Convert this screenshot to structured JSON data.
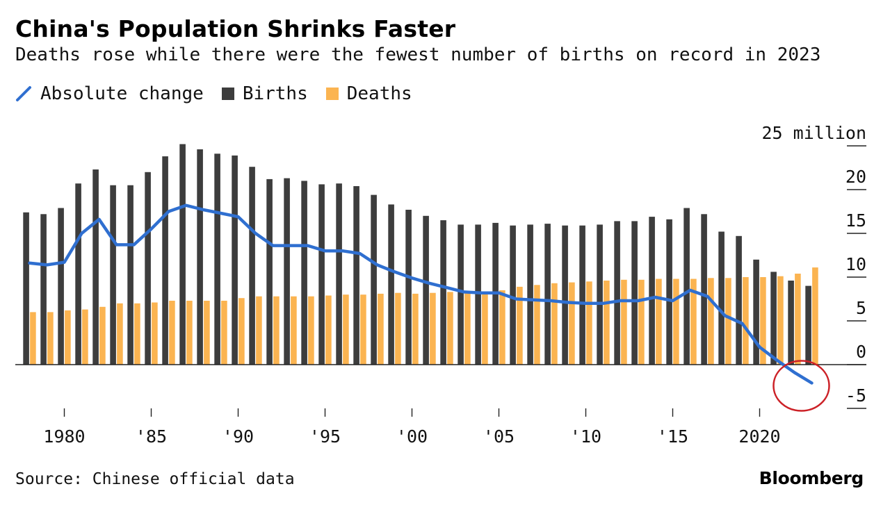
{
  "header": {
    "title": "China's Population Shrinks Faster",
    "subtitle": "Deaths rose while there were the fewest number of births on record in 2023"
  },
  "legend": {
    "line_label": "Absolute change",
    "births_label": "Births",
    "deaths_label": "Deaths"
  },
  "footer": {
    "source": "Source: Chinese official data",
    "brand": "Bloomberg"
  },
  "colors": {
    "births": "#3d3d3d",
    "deaths": "#fbb451",
    "change": "#2f6fd0",
    "highlight": "#cc2127"
  },
  "chart_data": {
    "type": "bar",
    "x": [
      1978,
      1979,
      1980,
      1981,
      1982,
      1983,
      1984,
      1985,
      1986,
      1987,
      1988,
      1989,
      1990,
      1991,
      1992,
      1993,
      1994,
      1995,
      1996,
      1997,
      1998,
      1999,
      2000,
      2001,
      2002,
      2003,
      2004,
      2005,
      2006,
      2007,
      2008,
      2009,
      2010,
      2011,
      2012,
      2013,
      2014,
      2015,
      2016,
      2017,
      2018,
      2019,
      2020,
      2021,
      2022,
      2023
    ],
    "series": [
      {
        "name": "Births",
        "type": "bar",
        "values": [
          17.4,
          17.2,
          17.9,
          20.7,
          22.3,
          20.5,
          20.5,
          22.0,
          23.8,
          25.2,
          24.6,
          24.1,
          23.9,
          22.6,
          21.2,
          21.3,
          21.0,
          20.6,
          20.7,
          20.4,
          19.4,
          18.3,
          17.7,
          17.0,
          16.5,
          16.0,
          16.0,
          16.2,
          15.9,
          16.0,
          16.1,
          15.9,
          15.9,
          16.0,
          16.4,
          16.4,
          16.9,
          16.6,
          17.9,
          17.2,
          15.2,
          14.7,
          12.0,
          10.6,
          9.6,
          9.0
        ]
      },
      {
        "name": "Deaths",
        "type": "bar",
        "values": [
          6.0,
          6.0,
          6.2,
          6.3,
          6.6,
          7.0,
          7.0,
          7.1,
          7.3,
          7.3,
          7.3,
          7.3,
          7.6,
          7.8,
          7.8,
          7.8,
          7.8,
          7.9,
          8.0,
          8.0,
          8.1,
          8.2,
          8.1,
          8.2,
          8.3,
          8.3,
          8.3,
          8.5,
          8.9,
          9.1,
          9.3,
          9.4,
          9.5,
          9.6,
          9.7,
          9.7,
          9.8,
          9.8,
          9.8,
          9.9,
          9.9,
          10.0,
          10.0,
          10.1,
          10.4,
          11.1
        ]
      },
      {
        "name": "Absolute change",
        "type": "line",
        "values": [
          11.6,
          11.4,
          11.7,
          15.0,
          16.6,
          13.7,
          13.7,
          15.5,
          17.5,
          18.2,
          17.7,
          17.3,
          16.9,
          15.0,
          13.6,
          13.6,
          13.6,
          13.0,
          13.0,
          12.7,
          11.4,
          10.6,
          9.9,
          9.3,
          8.8,
          8.3,
          8.2,
          8.2,
          7.5,
          7.4,
          7.3,
          7.1,
          7.0,
          7.0,
          7.3,
          7.3,
          7.7,
          7.3,
          8.5,
          7.8,
          5.6,
          4.7,
          2.0,
          0.5,
          -0.9,
          -2.1
        ]
      }
    ],
    "x_ticks": [
      {
        "x": 1980,
        "label": "1980"
      },
      {
        "x": 1985,
        "label": "'85"
      },
      {
        "x": 1990,
        "label": "'90"
      },
      {
        "x": 1995,
        "label": "'95"
      },
      {
        "x": 2000,
        "label": "'00"
      },
      {
        "x": 2005,
        "label": "'05"
      },
      {
        "x": 2010,
        "label": "'10"
      },
      {
        "x": 2015,
        "label": "'15"
      },
      {
        "x": 2020,
        "label": "2020"
      }
    ],
    "y_ticks": [
      {
        "y": 25,
        "label": "25 million"
      },
      {
        "y": 20,
        "label": "20"
      },
      {
        "y": 15,
        "label": "15"
      },
      {
        "y": 10,
        "label": "10"
      },
      {
        "y": 5,
        "label": "5"
      },
      {
        "y": 0,
        "label": "0"
      },
      {
        "y": -5,
        "label": "-5"
      }
    ],
    "ylim": [
      -5,
      25
    ],
    "xlim": [
      1977.5,
      2023.5
    ],
    "highlight_year": 2023,
    "legend_position": "top-left",
    "grid": false
  }
}
